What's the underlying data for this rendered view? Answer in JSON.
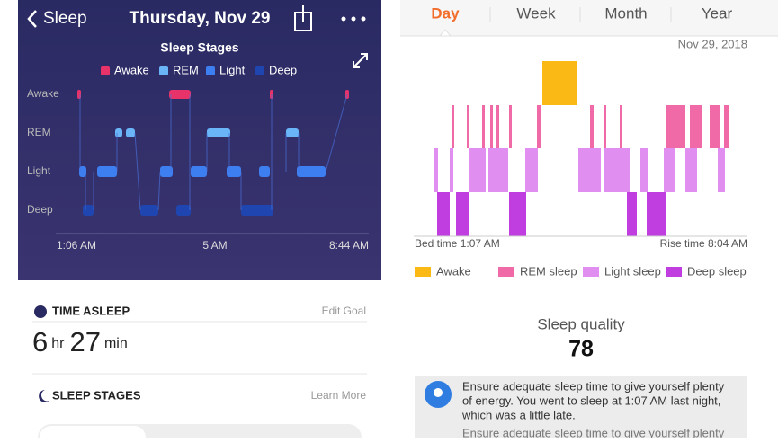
{
  "left": {
    "header": {
      "back": "Sleep",
      "title": "Thursday, Nov 29"
    },
    "chart": {
      "title": "Sleep Stages",
      "legend": [
        "Awake",
        "REM",
        "Light",
        "Deep"
      ],
      "y_labels": [
        "Awake",
        "REM",
        "Light",
        "Deep"
      ],
      "x_labels": [
        "1:06 AM",
        "5 AM",
        "8:44 AM"
      ]
    },
    "time_asleep": {
      "label": "TIME ASLEEP",
      "link": "Edit Goal",
      "hours": "6",
      "hours_unit": "hr",
      "minutes": "27",
      "minutes_unit": "min"
    },
    "sleep_stages": {
      "label": "SLEEP STAGES",
      "link": "Learn More"
    }
  },
  "right": {
    "tabs": [
      "Day",
      "Week",
      "Month",
      "Year"
    ],
    "date": "Nov 29, 2018",
    "bed_time": "Bed time 1:07 AM",
    "rise_time": "Rise time 8:04 AM",
    "legend": [
      "Awake",
      "REM sleep",
      "Light sleep",
      "Deep sleep"
    ],
    "quality_label": "Sleep quality",
    "quality_value": 78,
    "tips": [
      "Ensure adequate sleep time to give yourself plenty",
      "of energy. You went to sleep at 1:07 AM last night,",
      "which was a little late.",
      "Ensure adequate sleep time to give yourself plenty"
    ]
  }
}
